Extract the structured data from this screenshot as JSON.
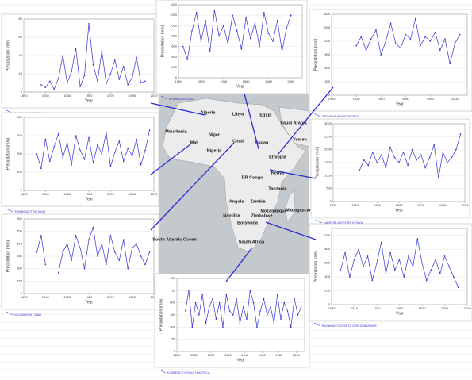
{
  "chart_data": [
    {
      "type": "line",
      "title": "IN SALAH ALGERIA",
      "xlabel": "Year",
      "ylabel": "Precipitation (mm)",
      "color": "#3434d4",
      "xlim": [
        1890,
        2010
      ],
      "xticks": [
        1890,
        1910,
        1930,
        1950,
        1970,
        1990,
        2010
      ],
      "ylim": [
        0,
        80
      ],
      "yticks": [
        0,
        20,
        40,
        60,
        80
      ],
      "grid": true,
      "x": [
        1906,
        1910,
        1914,
        1918,
        1922,
        1926,
        1930,
        1934,
        1938,
        1942,
        1946,
        1950,
        1954,
        1958,
        1962,
        1966,
        1970,
        1974,
        1978,
        1982,
        1986,
        1990,
        1994,
        1998,
        2002
      ],
      "values": [
        8,
        5,
        12,
        3,
        15,
        40,
        10,
        22,
        48,
        6,
        18,
        75,
        30,
        12,
        45,
        9,
        20,
        35,
        14,
        28,
        8,
        16,
        38,
        10,
        12
      ]
    },
    {
      "type": "line",
      "title": "ATBARA SUDAN",
      "xlabel": "Year",
      "ylabel": "Precipitation (mm)",
      "color": "#3434d4",
      "xlim": [
        1900,
        2010
      ],
      "xticks": [
        1900,
        1920,
        1940,
        1960,
        1980,
        2000
      ],
      "ylim": [
        0,
        1400
      ],
      "yticks": [
        0,
        200,
        400,
        600,
        800,
        1000,
        1200,
        1400
      ],
      "grid": true,
      "x": [
        1904,
        1908,
        1912,
        1916,
        1920,
        1924,
        1928,
        1932,
        1936,
        1940,
        1944,
        1948,
        1952,
        1956,
        1960,
        1964,
        1968,
        1972,
        1976,
        1980,
        1984,
        1988,
        1992,
        1996,
        2000
      ],
      "values": [
        600,
        350,
        900,
        1250,
        700,
        1100,
        500,
        1300,
        800,
        1000,
        650,
        1200,
        900,
        550,
        1150,
        750,
        1050,
        600,
        1250,
        850,
        700,
        1100,
        500,
        950,
        1200
      ]
    },
    {
      "type": "line",
      "title": "ADDIS ABABA ETHIOPIA",
      "xlabel": "Year",
      "ylabel": "Precipitation (mm)",
      "color": "#3434d4",
      "xlim": [
        1900,
        2010
      ],
      "xticks": [
        1900,
        1920,
        1940,
        1960,
        1980,
        2000
      ],
      "ylim": [
        0,
        1800
      ],
      "yticks": [
        0,
        300,
        600,
        900,
        1200,
        1500,
        1800
      ],
      "grid": true,
      "x": [
        1920,
        1924,
        1928,
        1932,
        1936,
        1940,
        1944,
        1948,
        1952,
        1956,
        1960,
        1964,
        1968,
        1972,
        1976,
        1980,
        1984,
        1988,
        1992,
        1996,
        2000,
        2004
      ],
      "values": [
        1100,
        1300,
        1000,
        1250,
        1450,
        900,
        1200,
        1600,
        1150,
        1050,
        1350,
        1250,
        1700,
        1100,
        1300,
        1200,
        1400,
        1000,
        1250,
        700,
        1150,
        1350
      ]
    },
    {
      "type": "line",
      "title": "TOMBOUCTOU MALI",
      "xlabel": "Year",
      "ylabel": "Precipitation (mm)",
      "color": "#3434d4",
      "xlim": [
        1890,
        2010
      ],
      "xticks": [
        1890,
        1910,
        1930,
        1950,
        1970,
        1990,
        2010
      ],
      "ylim": [
        0,
        400
      ],
      "yticks": [
        0,
        100,
        200,
        300,
        400
      ],
      "grid": true,
      "x": [
        1902,
        1906,
        1910,
        1914,
        1918,
        1922,
        1926,
        1930,
        1934,
        1938,
        1942,
        1946,
        1950,
        1954,
        1958,
        1962,
        1966,
        1970,
        1974,
        1978,
        1982,
        1986,
        1990,
        1994,
        1998,
        2002,
        2006
      ],
      "values": [
        200,
        120,
        280,
        160,
        240,
        310,
        180,
        260,
        140,
        300,
        220,
        170,
        290,
        150,
        250,
        200,
        320,
        130,
        210,
        270,
        160,
        230,
        190,
        280,
        140,
        220,
        330
      ]
    },
    {
      "type": "line",
      "title": "NAIROBI AIRPORT KENYA",
      "xlabel": "Year",
      "ylabel": "Precipitation (mm)",
      "color": "#3434d4",
      "xlim": [
        1890,
        2010
      ],
      "xticks": [
        1890,
        1910,
        1930,
        1950,
        1970,
        1990,
        2010
      ],
      "ylim": [
        0,
        3000
      ],
      "yticks": [
        0,
        500,
        1000,
        1500,
        2000,
        2500,
        3000
      ],
      "grid": true,
      "x": [
        1914,
        1918,
        1922,
        1926,
        1930,
        1934,
        1938,
        1942,
        1946,
        1950,
        1954,
        1958,
        1962,
        1966,
        1970,
        1974,
        1978,
        1982,
        1986,
        1990,
        1994,
        1998,
        2002,
        2006
      ],
      "values": [
        1200,
        1600,
        1400,
        1900,
        1500,
        1800,
        1300,
        2100,
        1700,
        1500,
        1900,
        1400,
        2000,
        1600,
        1800,
        1300,
        1700,
        2200,
        900,
        1900,
        1500,
        1700,
        2000,
        2600
      ]
    },
    {
      "type": "line",
      "title": "NDJAMENA CHAD",
      "xlabel": "Year",
      "ylabel": "Precipitation (mm)",
      "color": "#3434d4",
      "xlim": [
        1890,
        2010
      ],
      "xticks": [
        1890,
        1910,
        1930,
        1950,
        1970,
        1990,
        2010
      ],
      "ylim": [
        0,
        900
      ],
      "yticks": [
        0,
        150,
        300,
        450,
        600,
        750,
        900
      ],
      "grid": true,
      "x": [
        1902,
        1906,
        1910,
        1914,
        1918,
        1922,
        1926,
        1930,
        1934,
        1938,
        1942,
        1946,
        1950,
        1954,
        1958,
        1962,
        1966,
        1970,
        1974,
        1978,
        1982,
        1986,
        1990,
        1994,
        1998,
        2002,
        2006
      ],
      "values": [
        500,
        700,
        350,
        null,
        null,
        250,
        500,
        600,
        400,
        700,
        550,
        300,
        650,
        800,
        450,
        600,
        350,
        700,
        500,
        400,
        650,
        300,
        550,
        600,
        450,
        350,
        500
      ]
    },
    {
      "type": "line",
      "title": "BULAWAYO GOETZ OBS ZIMBABWE",
      "xlabel": "Year",
      "ylabel": "Precipitation (mm)",
      "color": "#3434d4",
      "xlim": [
        1890,
        2010
      ],
      "xticks": [
        1890,
        1910,
        1930,
        1950,
        1970,
        1990,
        2010
      ],
      "ylim": [
        0,
        1100
      ],
      "yticks": [
        0,
        200,
        400,
        600,
        800,
        1000
      ],
      "grid": true,
      "x": [
        1898,
        1902,
        1906,
        1910,
        1914,
        1918,
        1922,
        1926,
        1930,
        1934,
        1938,
        1942,
        1946,
        1950,
        1954,
        1958,
        1962,
        1966,
        1970,
        1974,
        1978,
        1982,
        1986,
        1990,
        1994,
        1998,
        2002
      ],
      "values": [
        500,
        750,
        400,
        650,
        800,
        550,
        700,
        350,
        600,
        900,
        450,
        750,
        500,
        650,
        400,
        700,
        550,
        950,
        600,
        350,
        500,
        650,
        450,
        700,
        550,
        400,
        250
      ]
    },
    {
      "type": "line",
      "title": "KIMBERLEY SOUTH AFRICA",
      "xlabel": "Year",
      "ylabel": "Precipitation (mm)",
      "color": "#3434d4",
      "xlim": [
        1860,
        2010
      ],
      "xticks": [
        1860,
        1880,
        1900,
        1920,
        1940,
        1960,
        1980,
        2000
      ],
      "ylim": [
        0,
        900
      ],
      "yticks": [
        0,
        150,
        300,
        450,
        600,
        750,
        900
      ],
      "grid": true,
      "x": [
        1870,
        1874,
        1878,
        1882,
        1886,
        1890,
        1894,
        1898,
        1902,
        1906,
        1910,
        1914,
        1918,
        1922,
        1926,
        1930,
        1934,
        1938,
        1942,
        1946,
        1950,
        1954,
        1958,
        1962,
        1966,
        1970,
        1974,
        1978,
        1982,
        1986,
        1990,
        1994,
        1998,
        2002,
        2006
      ],
      "values": [
        500,
        750,
        300,
        600,
        450,
        700,
        350,
        550,
        650,
        400,
        600,
        300,
        700,
        500,
        450,
        650,
        350,
        550,
        400,
        750,
        600,
        300,
        500,
        650,
        450,
        550,
        350,
        700,
        400,
        600,
        500,
        300,
        650,
        450,
        550
      ]
    }
  ],
  "map": {
    "labels": [
      "Algeria",
      "Libya",
      "Egypt",
      "Mauritania",
      "Mali",
      "Niger",
      "Chad",
      "Sudan",
      "Saudi Arabia",
      "Yemen",
      "Nigeria",
      "Ethiopia",
      "DR Congo",
      "Kenya",
      "Tanzania",
      "Angola",
      "Zambia",
      "Mozambique",
      "Namibia",
      "Zimbabwe",
      "Botswana",
      "Madagascar",
      "South Africa",
      "South Atlantic Ocean"
    ]
  }
}
